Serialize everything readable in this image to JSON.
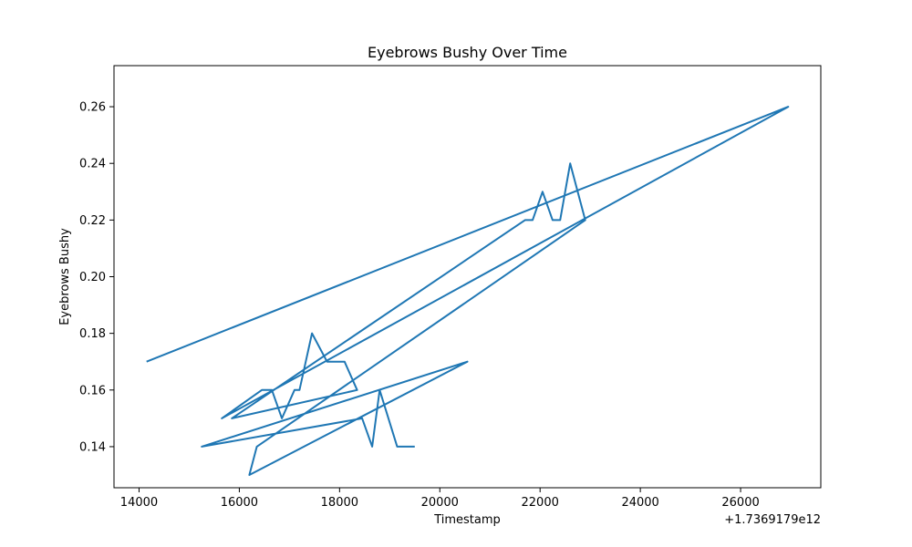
{
  "chart_data": {
    "type": "line",
    "title": "Eyebrows Bushy Over Time",
    "xlabel": "Timestamp",
    "ylabel": "Eyebrows Bushy",
    "x_offset_label": "+1.7369179e12",
    "xlim": [
      13500,
      27600
    ],
    "ylim": [
      0.1255,
      0.2745
    ],
    "xticks": [
      14000,
      16000,
      18000,
      20000,
      22000,
      24000,
      26000
    ],
    "yticks": [
      0.14,
      0.16,
      0.18,
      0.2,
      0.22,
      0.24,
      0.26
    ],
    "xtick_labels": [
      "14000",
      "16000",
      "18000",
      "20000",
      "22000",
      "24000",
      "26000"
    ],
    "ytick_labels": [
      "0.14",
      "0.16",
      "0.18",
      "0.20",
      "0.22",
      "0.24",
      "0.26"
    ],
    "grid": false,
    "line_color": "#1f77b4",
    "x": [
      14150,
      26950,
      15650,
      16450,
      16650,
      16850,
      17100,
      17200,
      17450,
      17750,
      17900,
      18100,
      18350,
      15850,
      21700,
      21850,
      22050,
      22250,
      22400,
      22600,
      22900,
      16350,
      16200,
      20550,
      15250,
      18450,
      18650,
      18800,
      19150,
      19500
    ],
    "y": [
      0.17,
      0.26,
      0.15,
      0.16,
      0.16,
      0.15,
      0.16,
      0.16,
      0.18,
      0.17,
      0.17,
      0.17,
      0.16,
      0.15,
      0.22,
      0.22,
      0.23,
      0.22,
      0.22,
      0.24,
      0.22,
      0.14,
      0.13,
      0.17,
      0.14,
      0.15,
      0.14,
      0.16,
      0.14,
      0.14
    ]
  }
}
